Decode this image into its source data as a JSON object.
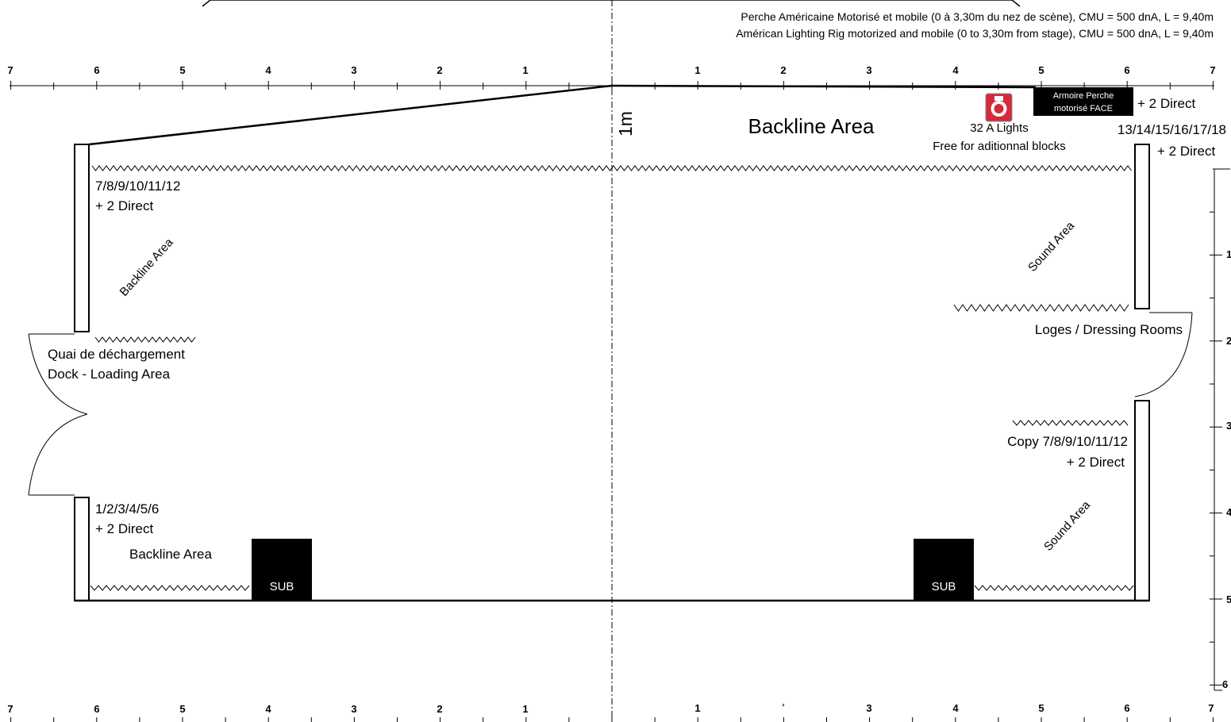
{
  "rig": {
    "line_fr": "Perche Américaine Motorisé et mobile (0 à 3,30m du nez de scène), CMU = 500 dnA, L = 9,40m",
    "line_en": "Américan Lighting Rig motorized and mobile (0 to 3,30m from  stage), CMU = 500 dnA, L = 9,40m"
  },
  "top_ruler": {
    "left": [
      "7",
      "6",
      "5",
      "4",
      "3",
      "2",
      "1"
    ],
    "right": [
      "1",
      "2",
      "3",
      "4",
      "5",
      "6",
      "7"
    ]
  },
  "bottom_ruler": {
    "left": [
      "7",
      "6",
      "5",
      "4",
      "3",
      "2",
      "1"
    ],
    "right": [
      "1",
      "²",
      "3",
      "4",
      "5",
      "6",
      "7"
    ]
  },
  "side_ruler": [
    "1",
    "2",
    "3",
    "4",
    "5",
    "6"
  ],
  "center_label": "1m",
  "labels": {
    "backline_top": "Backline Area",
    "lights_32a": "32 A Lights",
    "free_blocks": "Free for aditionnal blocks",
    "armoire_line1": "Armoire Perche",
    "armoire_line2": "motorisé FACE",
    "direct_top_right": "+ 2 Direct",
    "circuits_13_18": "13/14/15/16/17/18",
    "direct_right": "+ 2 Direct",
    "circuits_7_12": "7/8/9/10/11/12",
    "direct_7_12": "+ 2 Direct",
    "backline_left_diag": "Backline Area",
    "sound_area_upper": "Sound Area",
    "loges": "Loges / Dressing Rooms",
    "quai": "Quai de déchargement",
    "dock": "Dock - Loading Area",
    "copy_circuits": "Copy 7/8/9/10/11/12",
    "copy_direct": "+ 2 Direct",
    "circuits_1_6": "1/2/3/4/5/6",
    "direct_1_6": "+ 2 Direct",
    "backline_bottom": "Backline Area",
    "sound_area_lower": "Sound Area",
    "sub_left": "SUB",
    "sub_right": "SUB"
  },
  "colors": {
    "ink": "#000000",
    "lights_icon": "#d42a3a"
  }
}
